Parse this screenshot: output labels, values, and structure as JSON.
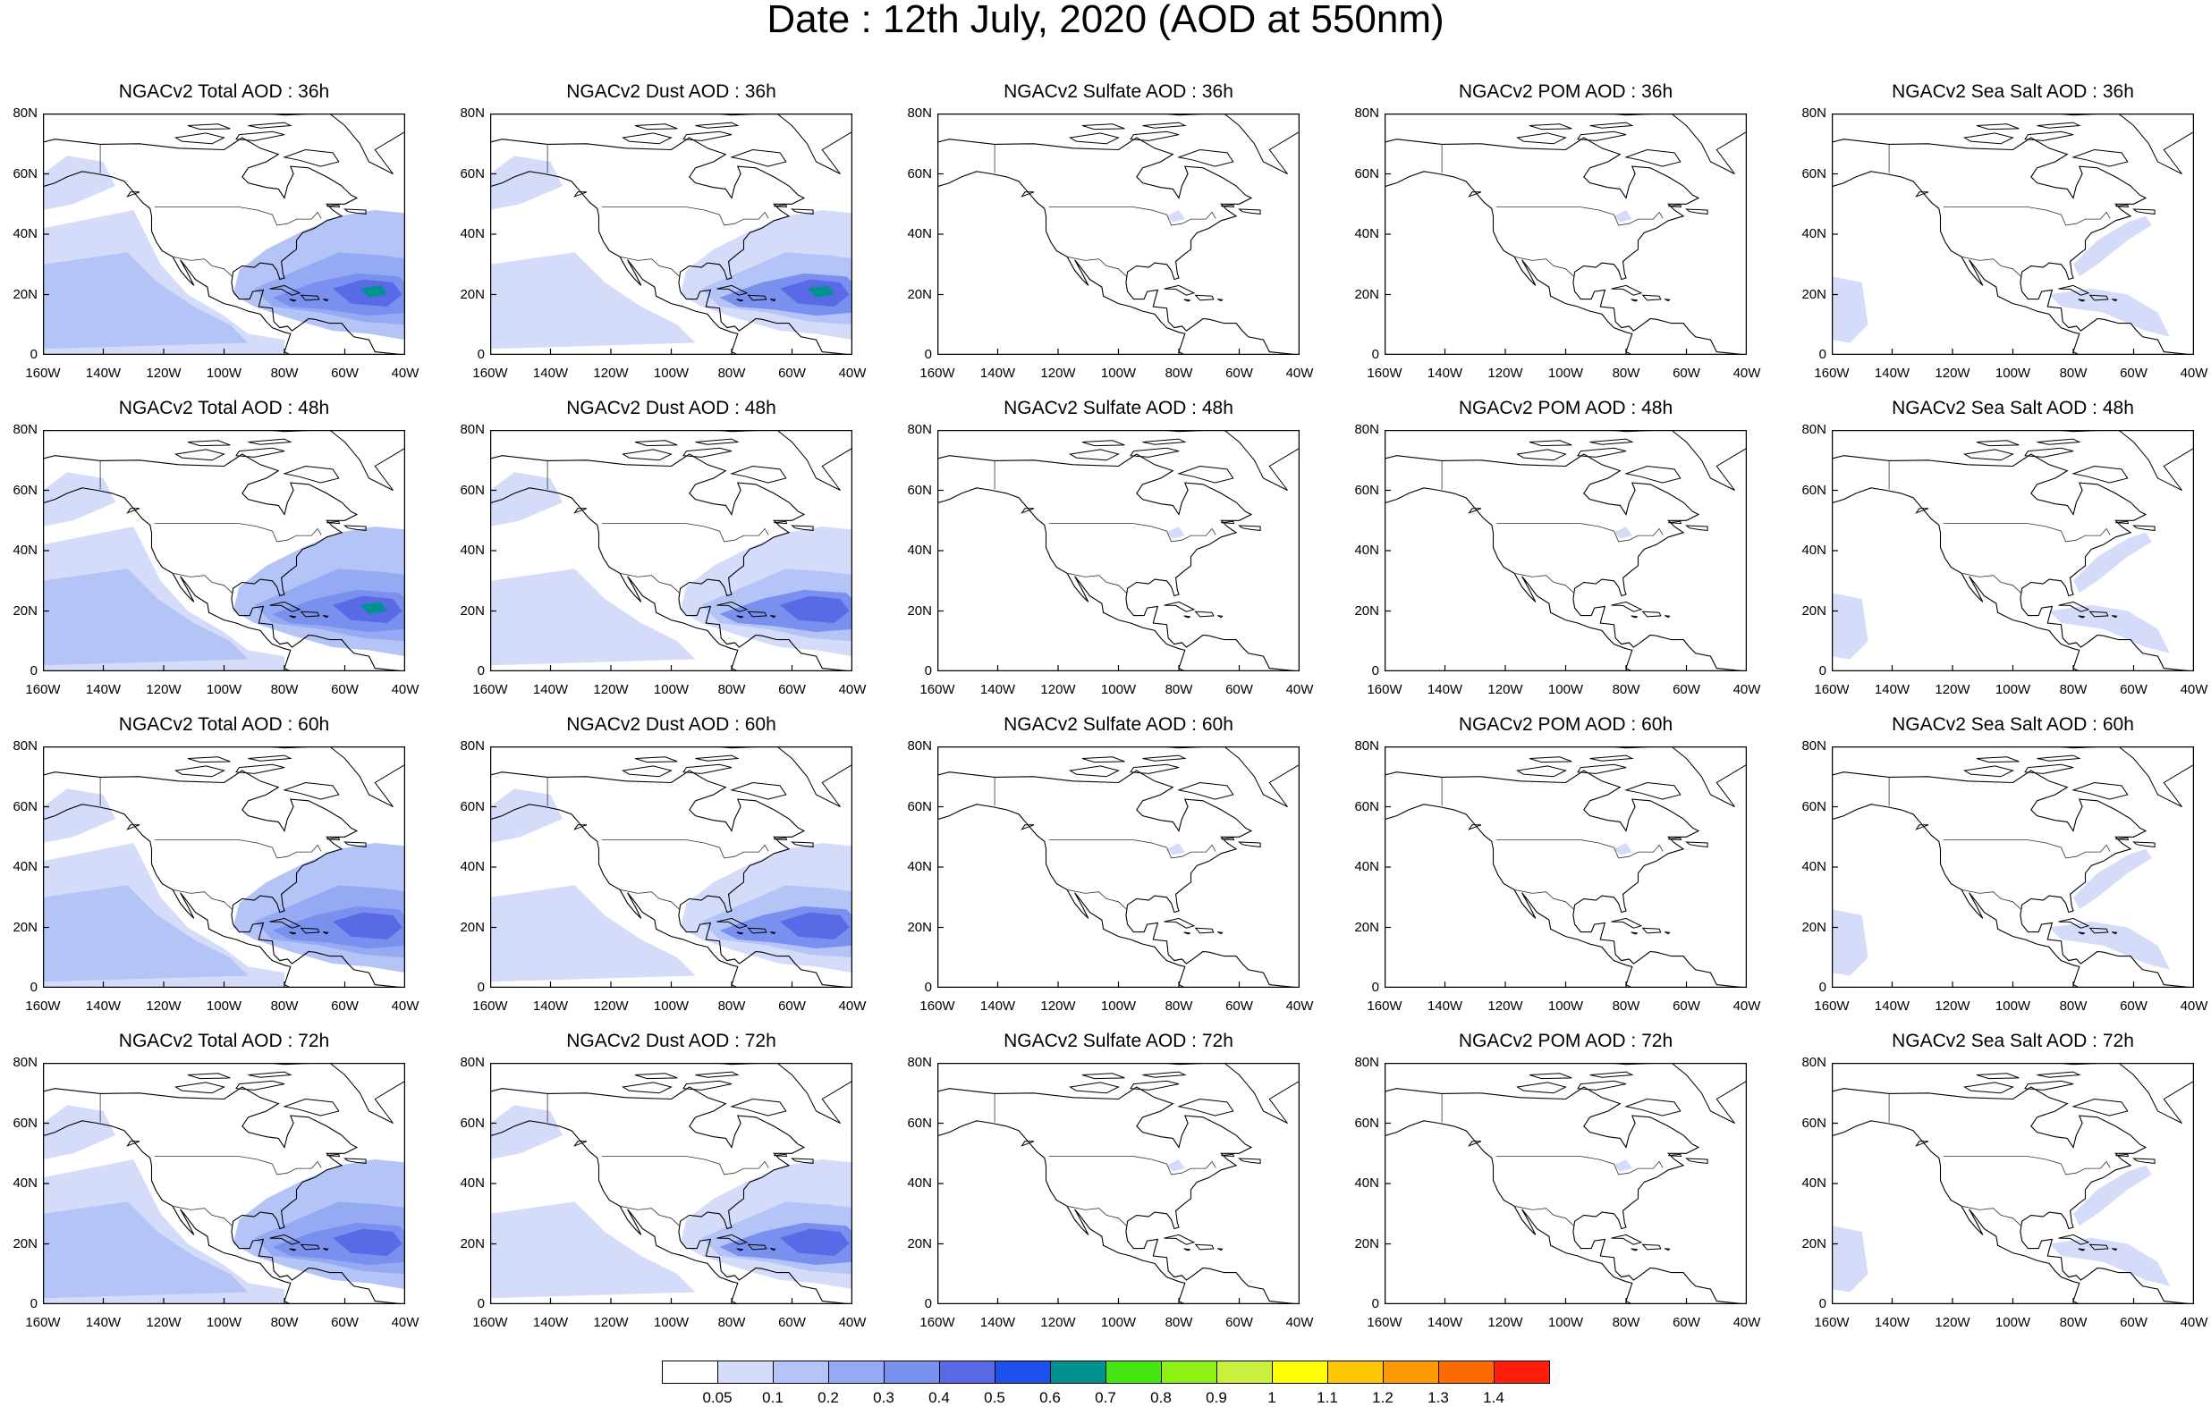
{
  "title": "Date : 12th July, 2020 (AOD at 550nm)",
  "columns": [
    {
      "key": "total",
      "name": "NGACv2 Total AOD"
    },
    {
      "key": "dust",
      "name": "NGACv2 Dust AOD"
    },
    {
      "key": "sulfate",
      "name": "NGACv2 Sulfate AOD"
    },
    {
      "key": "pom",
      "name": "NGACv2 POM AOD"
    },
    {
      "key": "seasalt",
      "name": "NGACv2 Sea Salt AOD"
    }
  ],
  "rows": [
    {
      "hour": "36h"
    },
    {
      "hour": "48h"
    },
    {
      "hour": "60h"
    },
    {
      "hour": "72h"
    }
  ],
  "panels": [
    [
      "NGACv2 Total AOD : 36h",
      "NGACv2 Dust AOD : 36h",
      "NGACv2 Sulfate AOD : 36h",
      "NGACv2 POM AOD : 36h",
      "NGACv2 Sea Salt AOD : 36h"
    ],
    [
      "NGACv2 Total AOD : 48h",
      "NGACv2 Dust AOD : 48h",
      "NGACv2 Sulfate AOD : 48h",
      "NGACv2 POM AOD : 48h",
      "NGACv2 Sea Salt AOD : 48h"
    ],
    [
      "NGACv2 Total AOD : 60h",
      "NGACv2 Dust AOD : 60h",
      "NGACv2 Sulfate AOD : 60h",
      "NGACv2 POM AOD : 60h",
      "NGACv2 Sea Salt AOD : 60h"
    ],
    [
      "NGACv2 Total AOD : 72h",
      "NGACv2 Dust AOD : 72h",
      "NGACv2 Sulfate AOD : 72h",
      "NGACv2 POM AOD : 72h",
      "NGACv2 Sea Salt  AOD : 72h"
    ]
  ],
  "map_extent": {
    "lon": [
      -160,
      -40
    ],
    "lat": [
      0,
      80
    ]
  },
  "lat_ticks": [
    "0",
    "20N",
    "40N",
    "60N",
    "80N"
  ],
  "lon_ticks": [
    "160W",
    "140W",
    "120W",
    "100W",
    "80W",
    "60W",
    "40W"
  ],
  "colorbar": {
    "levels": [
      "0.05",
      "0.1",
      "0.2",
      "0.3",
      "0.4",
      "0.5",
      "0.6",
      "0.7",
      "0.8",
      "0.9",
      "1",
      "1.1",
      "1.2",
      "1.3",
      "1.4"
    ],
    "colors": [
      "#ffffff",
      "#d4dcfa",
      "#b4c4f6",
      "#96aaf4",
      "#7a90ee",
      "#5a6ae6",
      "#1e50ee",
      "#00928e",
      "#44e614",
      "#8ef014",
      "#c8f03c",
      "#ffff00",
      "#ffc800",
      "#ff9a00",
      "#ff6a00",
      "#ff1e0a"
    ]
  }
}
